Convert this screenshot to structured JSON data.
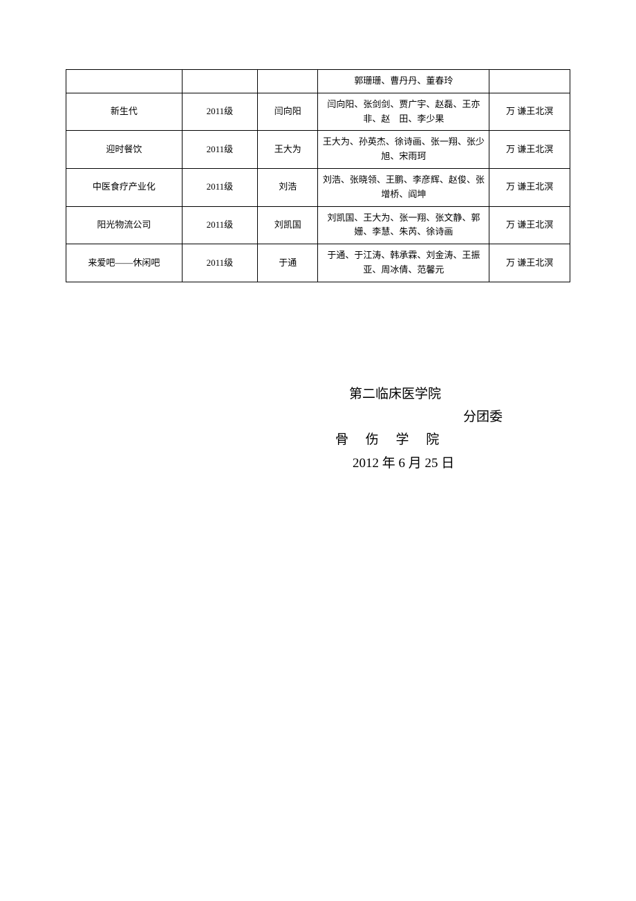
{
  "table": {
    "columns": [
      {
        "width": "23%"
      },
      {
        "width": "15%"
      },
      {
        "width": "12%"
      },
      {
        "width": "34%"
      },
      {
        "width": "16%"
      }
    ],
    "border_color": "#000000",
    "font_size": 13,
    "rows": [
      {
        "c1": "",
        "c2": "",
        "c3": "",
        "c4": "郭珊珊、曹丹丹、董春玲",
        "c5": ""
      },
      {
        "c1": "新生代",
        "c2": "2011级",
        "c3": "闫向阳",
        "c4": "闫向阳、张剑剑、贾广宇、赵磊、王亦非、赵　田、李少果",
        "c5": "万  谦王北溟"
      },
      {
        "c1": "迎时餐饮",
        "c2": "2011级",
        "c3": "王大为",
        "c4": "王大为、孙英杰、徐诗画、张一翔、张少旭、宋雨珂",
        "c5": "万  谦王北溟"
      },
      {
        "c1": "中医食疗产业化",
        "c2": "2011级",
        "c3": "刘浩",
        "c4": "刘浩、张晓领、王鹏、李彦辉、赵俊、张增桥、阎坤",
        "c5": "万  谦王北溟"
      },
      {
        "c1": "阳光物流公司",
        "c2": "2011级",
        "c3": "刘凯国",
        "c4": "刘凯国、王大为、张一翔、张文静、郭姗、李慧、朱芮、徐诗画",
        "c5": "万  谦王北溟"
      },
      {
        "c1": "来爱吧——休闲吧",
        "c2": "2011级",
        "c3": "于通",
        "c4": "于通、于江涛、韩承霖、刘金涛、王振亚、周冰倩、范馨元",
        "c5": "万  谦王北溟"
      }
    ]
  },
  "signature": {
    "line1": "第二临床医学院",
    "line2": "分团委",
    "line3": "骨 伤 学 院",
    "line4": "2012 年 6 月 25 日",
    "font_size": 19
  }
}
